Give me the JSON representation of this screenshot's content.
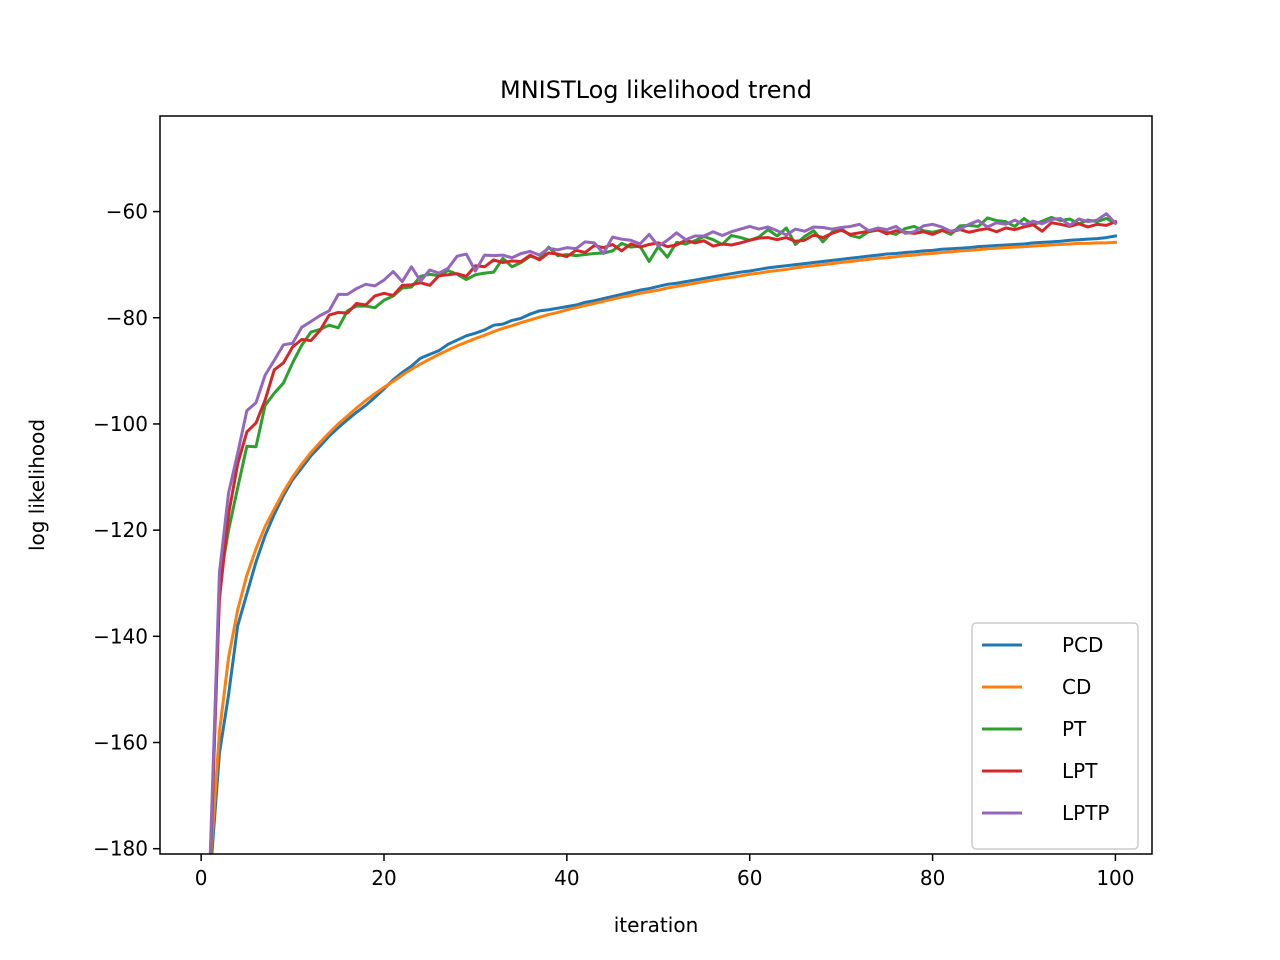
{
  "chart_data": {
    "type": "line",
    "title": "MNISTLog likelihood trend",
    "xlabel": "iteration",
    "ylabel": "log likelihood",
    "xlim": [
      -4.5,
      104
    ],
    "ylim": [
      -181,
      -42
    ],
    "grid": false,
    "legend_position": "lower-right",
    "x_start": 0,
    "x_step": 1,
    "x_ticks": [
      {
        "value": 0,
        "label": "0"
      },
      {
        "value": 20,
        "label": "20"
      },
      {
        "value": 40,
        "label": "40"
      },
      {
        "value": 60,
        "label": "60"
      },
      {
        "value": 80,
        "label": "80"
      },
      {
        "value": 100,
        "label": "100"
      }
    ],
    "y_ticks": [
      {
        "value": -180,
        "label": "−180"
      },
      {
        "value": -160,
        "label": "−160"
      },
      {
        "value": -140,
        "label": "−140"
      },
      {
        "value": -120,
        "label": "−120"
      },
      {
        "value": -100,
        "label": "−100"
      },
      {
        "value": -80,
        "label": "−80"
      },
      {
        "value": -60,
        "label": "−60"
      }
    ],
    "series": [
      {
        "name": "PCD",
        "color": "#1f77b4",
        "values": [
          null,
          -185,
          -162,
          -151,
          -138,
          -132,
          -126,
          -121,
          -117,
          -113.5,
          -110.5,
          -108.3,
          -106,
          -104.2,
          -102.3,
          -100.7,
          -99.2,
          -97.8,
          -96.5,
          -95,
          -93.4,
          -91.7,
          -90.3,
          -89.1,
          -87.6,
          -86.9,
          -86.2,
          -85,
          -84.2,
          -83.4,
          -82.9,
          -82.3,
          -81.4,
          -81.2,
          -80.5,
          -80.1,
          -79.3,
          -78.7,
          -78.5,
          -78.2,
          -77.9,
          -77.6,
          -77.1,
          -76.8,
          -76.4,
          -76,
          -75.6,
          -75.2,
          -74.8,
          -74.5,
          -74.1,
          -73.7,
          -73.5,
          -73.2,
          -72.9,
          -72.6,
          -72.3,
          -72,
          -71.7,
          -71.4,
          -71.2,
          -70.9,
          -70.6,
          -70.4,
          -70.2,
          -70,
          -69.8,
          -69.6,
          -69.4,
          -69.2,
          -69,
          -68.8,
          -68.6,
          -68.4,
          -68.2,
          -68,
          -67.9,
          -67.7,
          -67.6,
          -67.4,
          -67.3,
          -67.1,
          -67,
          -66.9,
          -66.8,
          -66.6,
          -66.5,
          -66.4,
          -66.3,
          -66.2,
          -66.1,
          -65.9,
          -65.8,
          -65.7,
          -65.6,
          -65.4,
          -65.3,
          -65.2,
          -65.1,
          -64.9,
          -64.6
        ]
      },
      {
        "name": "CD",
        "color": "#ff7f0e",
        "values": [
          null,
          -183,
          -158,
          -144,
          -135,
          -128.5,
          -123.5,
          -119.3,
          -116,
          -112.8,
          -110,
          -107.6,
          -105.4,
          -103.5,
          -101.7,
          -100,
          -98.5,
          -97,
          -95.6,
          -94.3,
          -93.1,
          -92,
          -90.8,
          -89.7,
          -88.7,
          -87.8,
          -86.9,
          -86.1,
          -85.3,
          -84.6,
          -83.9,
          -83.3,
          -82.6,
          -82,
          -81.5,
          -80.9,
          -80.4,
          -79.9,
          -79.4,
          -79,
          -78.5,
          -78.1,
          -77.7,
          -77.3,
          -76.9,
          -76.5,
          -76.1,
          -75.8,
          -75.4,
          -75.1,
          -74.8,
          -74.4,
          -74.1,
          -73.8,
          -73.5,
          -73.2,
          -72.9,
          -72.6,
          -72.4,
          -72.1,
          -71.8,
          -71.6,
          -71.3,
          -71.1,
          -70.9,
          -70.6,
          -70.4,
          -70.2,
          -70,
          -69.8,
          -69.6,
          -69.4,
          -69.2,
          -69,
          -68.8,
          -68.7,
          -68.5,
          -68.3,
          -68.2,
          -68,
          -67.9,
          -67.7,
          -67.6,
          -67.4,
          -67.3,
          -67.2,
          -67,
          -66.9,
          -66.8,
          -66.7,
          -66.6,
          -66.5,
          -66.4,
          -66.3,
          -66.2,
          -66.1,
          -66,
          -66,
          -65.9,
          -65.9,
          -65.8
        ]
      },
      {
        "name": "PT",
        "color": "#2ca02c",
        "values": [
          null,
          -184,
          -130,
          -120,
          -112,
          -104.2,
          -104.3,
          -96.5,
          -94.2,
          -92.3,
          -88.5,
          -85.2,
          -82.7,
          -82.2,
          -81.4,
          -81.9,
          -78.7,
          -77.8,
          -77.8,
          -78.1,
          -76.7,
          -75.9,
          -74.4,
          -74.2,
          -72.2,
          -71.8,
          -72.1,
          -71.1,
          -71.8,
          -72.8,
          -71.9,
          -71.6,
          -71.4,
          -68.8,
          -70.4,
          -69.6,
          -68.4,
          -68.9,
          -66.7,
          -68.3,
          -68.1,
          -68.3,
          -68.1,
          -67.9,
          -67.8,
          -67.4,
          -66,
          -66.7,
          -66.5,
          -69.4,
          -66.6,
          -68.6,
          -65.8,
          -66.1,
          -65.5,
          -64.7,
          -65.3,
          -66.2,
          -64.5,
          -64.9,
          -65.4,
          -64.8,
          -63.4,
          -64.6,
          -63.1,
          -66.2,
          -64.7,
          -63.6,
          -65.7,
          -63.9,
          -63.2,
          -64.5,
          -64.9,
          -63.8,
          -63.5,
          -63.9,
          -64.3,
          -63.2,
          -62.8,
          -63.6,
          -63.9,
          -63.5,
          -64.3,
          -62.7,
          -62.6,
          -62.8,
          -61.2,
          -61.7,
          -61.9,
          -62.8,
          -61.3,
          -62.5,
          -61.8,
          -61.1,
          -61.7,
          -61.4,
          -62.3,
          -61.6,
          -61.9,
          -61.3,
          -62.2
        ]
      },
      {
        "name": "LPT",
        "color": "#d62728",
        "values": [
          null,
          -182,
          -133,
          -117,
          -107.5,
          -101.5,
          -99.8,
          -95.5,
          -89.8,
          -88.5,
          -85.5,
          -84.1,
          -84.3,
          -82.4,
          -79.5,
          -79,
          -79.1,
          -77.3,
          -77.6,
          -75.9,
          -75.4,
          -75.8,
          -73.9,
          -73.8,
          -73.4,
          -73.9,
          -72.1,
          -71.9,
          -71.7,
          -72.2,
          -70.2,
          -70.4,
          -69.1,
          -69.6,
          -69.3,
          -69.4,
          -68.2,
          -69.1,
          -67.8,
          -68,
          -68.5,
          -67.3,
          -67.7,
          -66.4,
          -66.8,
          -66.2,
          -67.4,
          -66.1,
          -66.7,
          -66.2,
          -65.9,
          -66.6,
          -66.3,
          -65.4,
          -65.9,
          -65.5,
          -66.5,
          -66.1,
          -66.3,
          -65.9,
          -65.4,
          -65,
          -64.9,
          -65.3,
          -64.9,
          -65.6,
          -65.4,
          -64.4,
          -64.9,
          -64.1,
          -63.5,
          -64.3,
          -64,
          -63.7,
          -63.4,
          -64.2,
          -63.6,
          -63.9,
          -64.1,
          -63.8,
          -64.3,
          -63.6,
          -63.8,
          -63.4,
          -63.9,
          -63.5,
          -63.2,
          -63.8,
          -63.1,
          -63.4,
          -62.9,
          -62.5,
          -63.7,
          -62.1,
          -62.4,
          -62.8,
          -62.3,
          -62.9,
          -62.4,
          -62.6,
          -61.9
        ]
      },
      {
        "name": "LPTP",
        "color": "#9467bd",
        "values": [
          null,
          -181,
          -128,
          -113,
          -105.5,
          -97.5,
          -96,
          -90.8,
          -88,
          -85.1,
          -84.8,
          -81.8,
          -80.7,
          -79.6,
          -78.7,
          -75.6,
          -75.6,
          -74.5,
          -73.7,
          -74,
          -72.9,
          -71.3,
          -73.2,
          -70.4,
          -73.1,
          -71,
          -71.6,
          -70.7,
          -68.4,
          -68,
          -71.2,
          -68.2,
          -68.3,
          -68.2,
          -68.7,
          -67.9,
          -67.5,
          -68.2,
          -66.9,
          -67.2,
          -66.8,
          -67,
          -65.7,
          -65.9,
          -67.9,
          -64.8,
          -65.2,
          -65.4,
          -66.1,
          -64.3,
          -66.5,
          -65.4,
          -64,
          -65.3,
          -64.6,
          -64.6,
          -63.8,
          -64.5,
          -63.8,
          -63.3,
          -62.8,
          -63.3,
          -62.9,
          -63.6,
          -64.4,
          -63.3,
          -63.7,
          -62.9,
          -63,
          -63.3,
          -63,
          -62.8,
          -62.4,
          -63.6,
          -63.1,
          -63.4,
          -62.8,
          -64.1,
          -63.8,
          -62.7,
          -62.4,
          -62.9,
          -63.7,
          -63.3,
          -62.4,
          -61.7,
          -62.9,
          -62.1,
          -62.4,
          -61.6,
          -62.5,
          -61.8,
          -62.3,
          -61.5,
          -61.3,
          -62.6,
          -61.4,
          -61.9,
          -61.6,
          -60.4,
          -62.2
        ]
      }
    ]
  }
}
